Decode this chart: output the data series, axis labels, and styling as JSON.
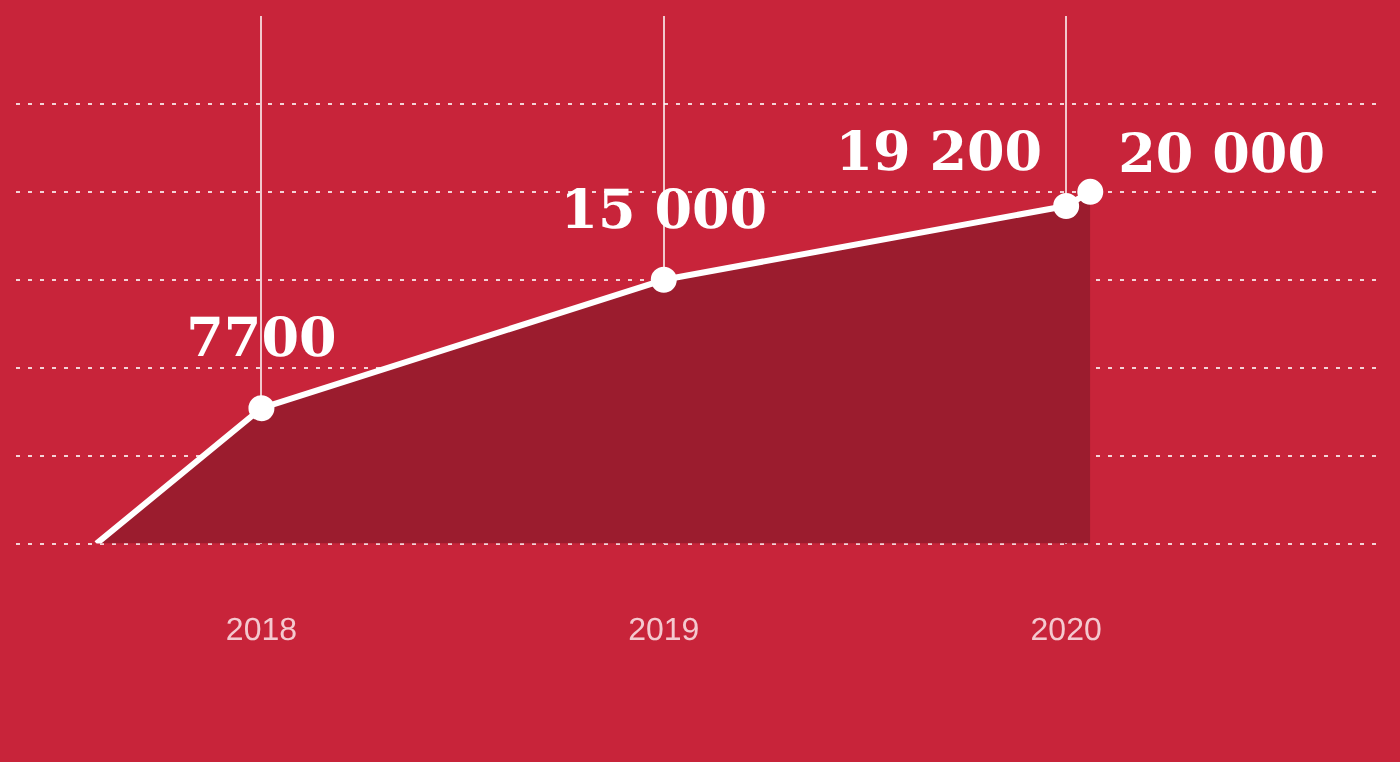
{
  "chart_data": {
    "type": "area",
    "x": [
      2017.59,
      2018,
      2019,
      2020,
      2020.06
    ],
    "series": [
      {
        "color": "#ffffff",
        "values": [
          0,
          7700,
          15000,
          19200,
          20000
        ],
        "value_labels": [
          null,
          "7700",
          "15 000",
          "19 200",
          "20 000"
        ]
      }
    ],
    "xlim": [
      2017.39,
      2020.79
    ],
    "xticks": [
      2018,
      2019,
      2020
    ],
    "ylim": [
      0,
      30000
    ],
    "yticks": [
      {
        "value": 0,
        "label": null
      },
      {
        "value": 5000,
        "label": null
      },
      {
        "value": 10000,
        "label": null
      },
      {
        "value": 15000,
        "label": null
      },
      {
        "value": 20000,
        "label": null
      },
      {
        "value": 25000,
        "label": null
      }
    ],
    "grid": true,
    "marker": "circle",
    "legend": false
  }
}
